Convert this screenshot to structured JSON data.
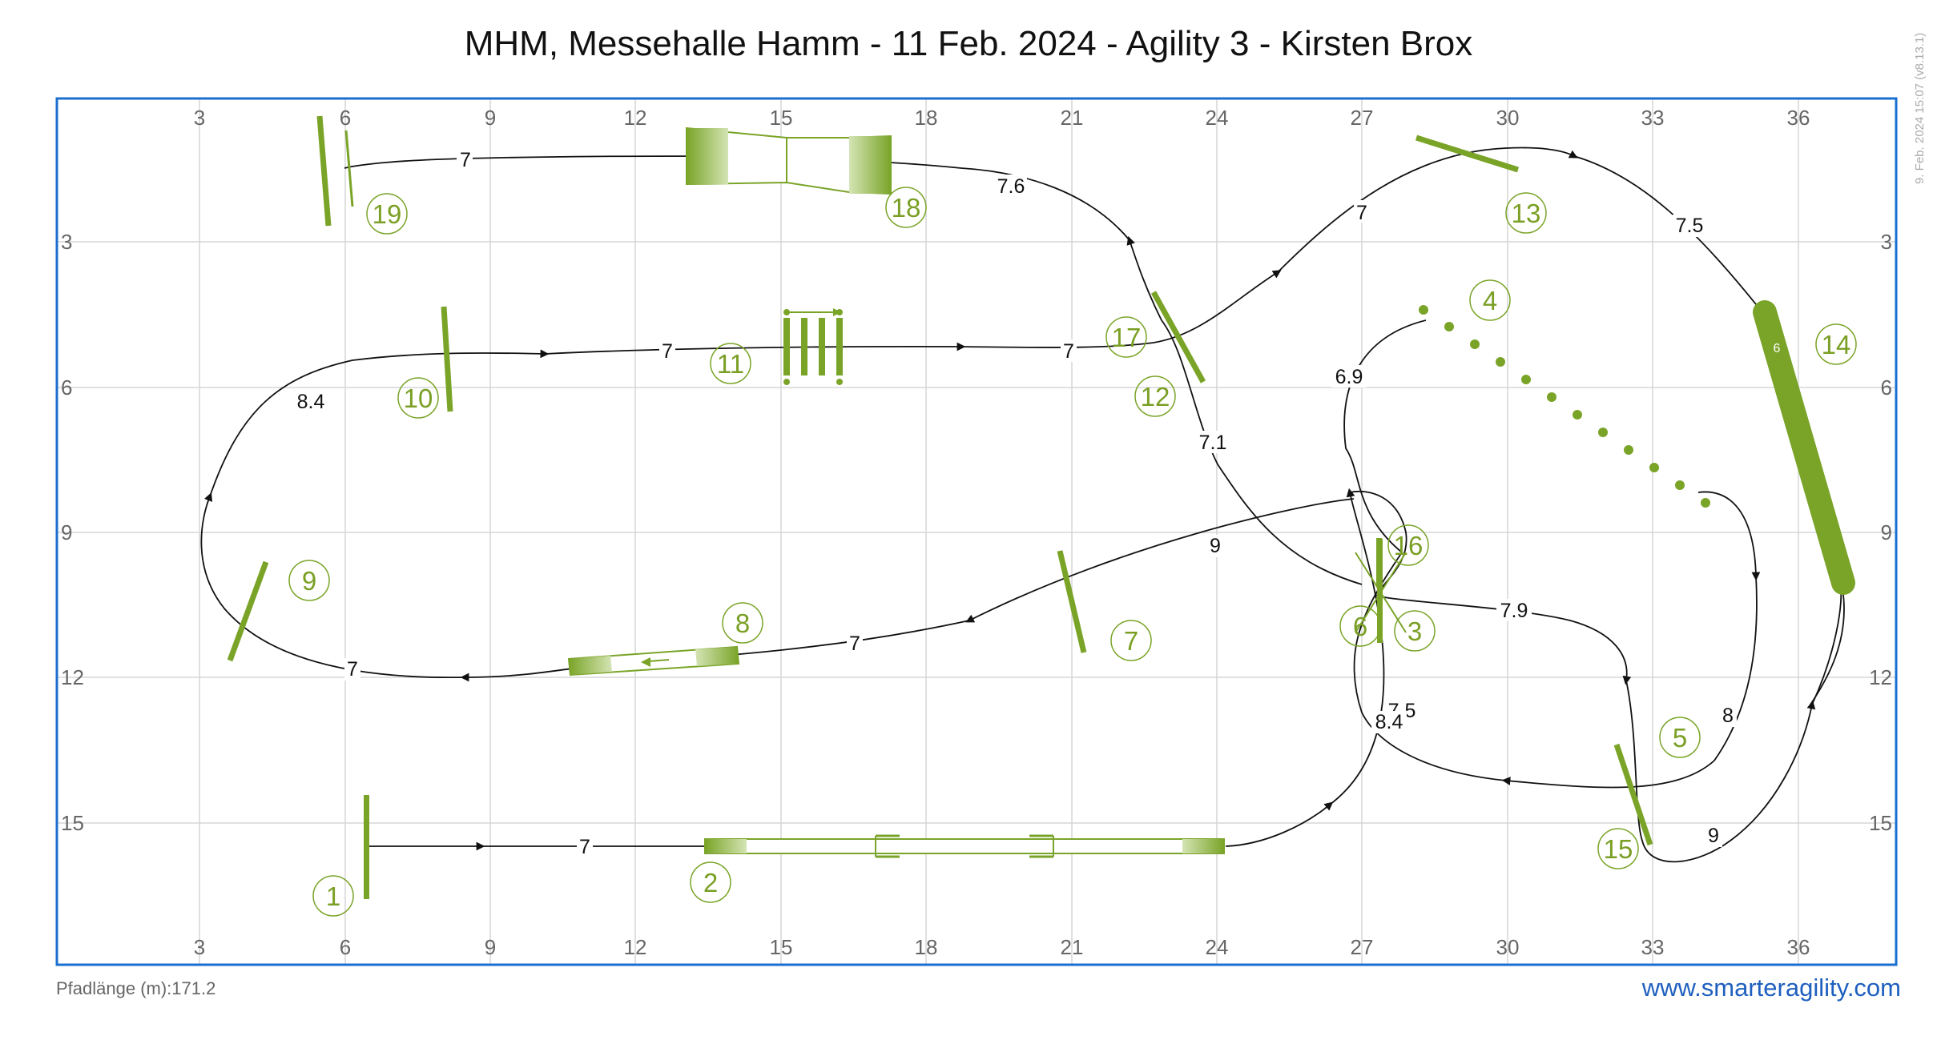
{
  "title": "MHM, Messehalle Hamm - 11 Feb. 2024 - Agility 3 - Kirsten Brox",
  "path_length": "Pfadlänge (m):171.2",
  "website": "www.smarteragility.com",
  "version_stamp": "9. Feb. 2024 15:07  (v8.13.1)",
  "colors": {
    "accent": "#7aa428",
    "frame": "#1a6fd0",
    "grid": "#d6d6d6",
    "path": "#111111"
  },
  "x_ticks": [
    "3",
    "6",
    "9",
    "12",
    "15",
    "18",
    "21",
    "24",
    "27",
    "30",
    "33",
    "36"
  ],
  "y_ticks": [
    "3",
    "6",
    "9",
    "12",
    "15"
  ],
  "obstacle_labels": [
    "1",
    "2",
    "3",
    "4",
    "5",
    "6",
    "7",
    "8",
    "9",
    "10",
    "11",
    "12",
    "13",
    "14",
    "15",
    "16",
    "17",
    "18",
    "19"
  ],
  "distance_labels": [
    "7",
    "7",
    "7.6",
    "7",
    "7.5",
    "7",
    "7",
    "8.4",
    "6.9",
    "7.1",
    "9",
    "7",
    "7",
    "7.9",
    "7.5",
    "8.4",
    "8",
    "9"
  ],
  "tunnel_label": "6"
}
